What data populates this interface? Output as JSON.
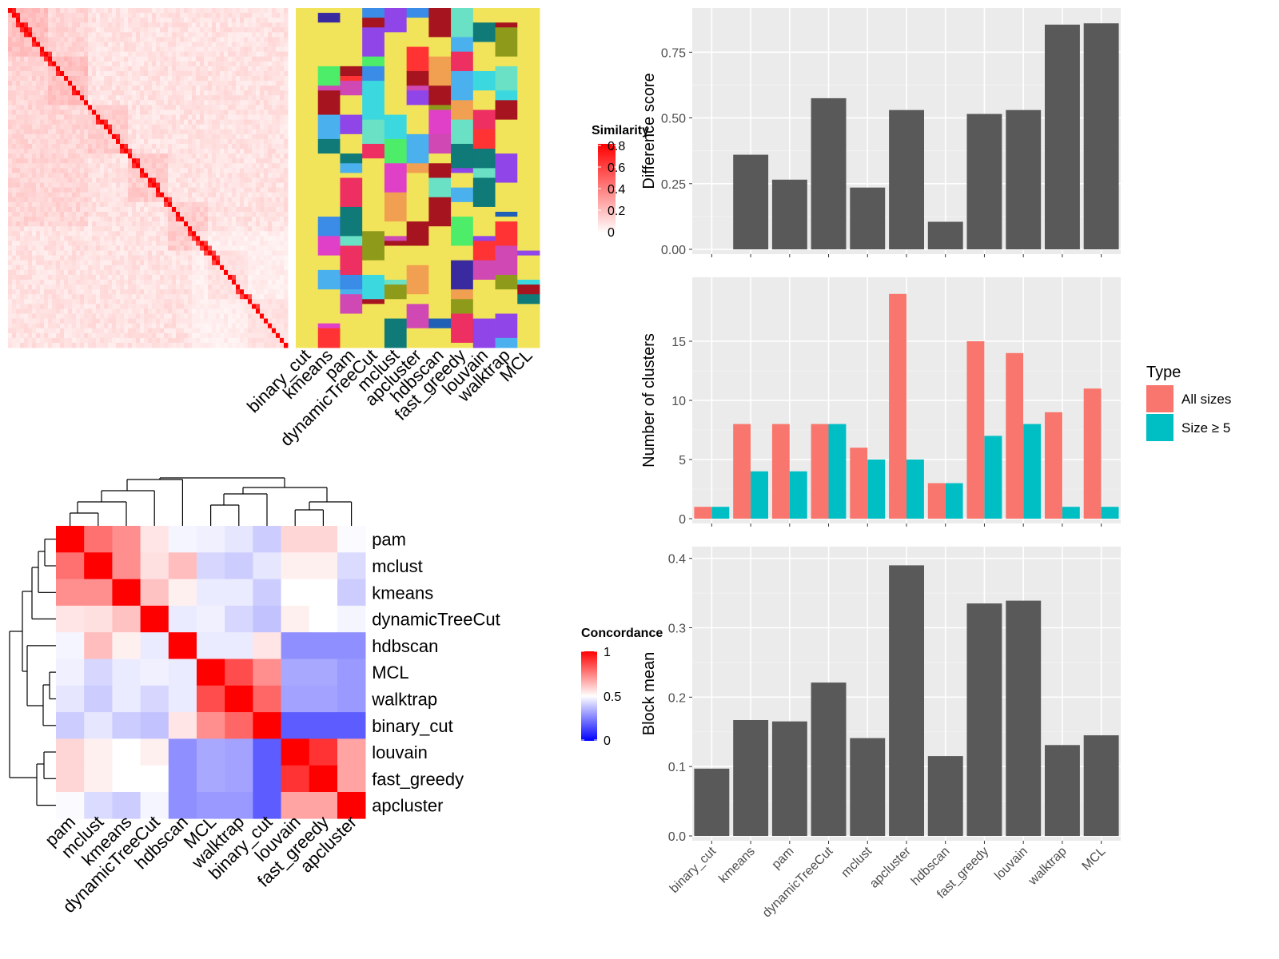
{
  "methods": [
    "binary_cut",
    "kmeans",
    "pam",
    "dynamicTreeCut",
    "mclust",
    "apcluster",
    "hdbscan",
    "fast_greedy",
    "louvain",
    "walktrap",
    "MCL"
  ],
  "similarity_legend": {
    "title": "Similarity",
    "ticks": [
      "0",
      "0.2",
      "0.4",
      "0.6",
      "0.8"
    ],
    "colors": [
      "#ffffff",
      "#ff0000"
    ]
  },
  "concordance_legend": {
    "title": "Concordance",
    "ticks": [
      "0",
      "0.5",
      "1"
    ],
    "colors": [
      "#0000ff",
      "#ffffff",
      "#ff0000"
    ]
  },
  "membership_palette": [
    "#f2e45a",
    "#6ae0c4",
    "#1f5fb5",
    "#3b8ce6",
    "#0f7a78",
    "#3a2aa0",
    "#e040c8",
    "#4ded6a",
    "#8f45e8",
    "#ff3333",
    "#f0a050",
    "#a6151f",
    "#8e9a1a",
    "#4ab0ee",
    "#cf48b4",
    "#3bd8e0",
    "#ee2f62"
  ],
  "chart_data": [
    {
      "type": "heatmap",
      "name": "Similarity heatmap with cluster memberships",
      "legend_title": "Similarity",
      "scale": [
        0,
        0.8
      ],
      "n_terms": 70,
      "columns": [
        "binary_cut",
        "kmeans",
        "pam",
        "dynamicTreeCut",
        "mclust",
        "apcluster",
        "hdbscan",
        "fast_greedy",
        "louvain",
        "walktrap",
        "MCL"
      ]
    },
    {
      "type": "heatmap",
      "name": "Concordance heatmap",
      "legend_title": "Concordance",
      "scale": [
        0,
        1
      ],
      "rows": [
        "pam",
        "mclust",
        "kmeans",
        "dynamicTreeCut",
        "hdbscan",
        "MCL",
        "walktrap",
        "binary_cut",
        "louvain",
        "fast_greedy",
        "apcluster"
      ],
      "cols": [
        "pam",
        "mclust",
        "kmeans",
        "dynamicTreeCut",
        "hdbscan",
        "MCL",
        "walktrap",
        "binary_cut",
        "louvain",
        "fast_greedy",
        "apcluster"
      ],
      "values": [
        [
          1.0,
          0.78,
          0.72,
          0.55,
          0.48,
          0.47,
          0.45,
          0.4,
          0.58,
          0.58,
          0.49
        ],
        [
          0.78,
          1.0,
          0.72,
          0.56,
          0.63,
          0.42,
          0.4,
          0.45,
          0.53,
          0.53,
          0.43
        ],
        [
          0.72,
          0.72,
          1.0,
          0.62,
          0.53,
          0.46,
          0.46,
          0.4,
          0.5,
          0.5,
          0.4
        ],
        [
          0.55,
          0.56,
          0.62,
          1.0,
          0.46,
          0.47,
          0.42,
          0.38,
          0.53,
          0.5,
          0.48
        ],
        [
          0.48,
          0.63,
          0.53,
          0.46,
          1.0,
          0.46,
          0.46,
          0.55,
          0.28,
          0.28,
          0.28
        ],
        [
          0.47,
          0.42,
          0.46,
          0.47,
          0.46,
          1.0,
          0.85,
          0.72,
          0.33,
          0.33,
          0.3
        ],
        [
          0.45,
          0.4,
          0.46,
          0.42,
          0.46,
          0.85,
          1.0,
          0.8,
          0.32,
          0.32,
          0.3
        ],
        [
          0.4,
          0.45,
          0.4,
          0.38,
          0.55,
          0.72,
          0.8,
          1.0,
          0.18,
          0.18,
          0.18
        ],
        [
          0.58,
          0.53,
          0.5,
          0.53,
          0.28,
          0.33,
          0.32,
          0.18,
          1.0,
          0.9,
          0.68
        ],
        [
          0.58,
          0.53,
          0.5,
          0.5,
          0.28,
          0.33,
          0.32,
          0.18,
          0.9,
          1.0,
          0.68
        ],
        [
          0.49,
          0.43,
          0.4,
          0.48,
          0.28,
          0.3,
          0.3,
          0.18,
          0.68,
          0.68,
          1.0
        ]
      ]
    },
    {
      "type": "bar",
      "name": "difference score",
      "categories": [
        "binary_cut",
        "kmeans",
        "pam",
        "dynamicTreeCut",
        "mclust",
        "apcluster",
        "hdbscan",
        "fast_greedy",
        "louvain",
        "walktrap",
        "MCL"
      ],
      "values": [
        0.0,
        0.36,
        0.265,
        0.575,
        0.235,
        0.53,
        0.105,
        0.515,
        0.53,
        0.855,
        0.86
      ],
      "ylabel": "Difference score",
      "ylim": [
        0,
        0.9
      ],
      "yticks": [
        "0.00",
        "0.25",
        "0.50",
        "0.75"
      ]
    },
    {
      "type": "bar",
      "name": "number of clusters",
      "categories": [
        "binary_cut",
        "kmeans",
        "pam",
        "dynamicTreeCut",
        "mclust",
        "apcluster",
        "hdbscan",
        "fast_greedy",
        "louvain",
        "walktrap",
        "MCL"
      ],
      "series": [
        {
          "name": "All sizes",
          "color": "#f8766d",
          "values": [
            1,
            8,
            8,
            8,
            6,
            19,
            3,
            15,
            14,
            9,
            11
          ]
        },
        {
          "name": "Size ≥ 5",
          "color": "#00bfc4",
          "values": [
            1,
            4,
            4,
            8,
            5,
            5,
            3,
            7,
            8,
            1,
            1
          ]
        }
      ],
      "ylabel": "Number of clusters",
      "ylim": [
        0,
        20
      ],
      "yticks": [
        "0",
        "5",
        "10",
        "15"
      ],
      "legend_title": "Type",
      "legend_position": "right"
    },
    {
      "type": "bar",
      "name": "block mean",
      "categories": [
        "binary_cut",
        "kmeans",
        "pam",
        "dynamicTreeCut",
        "mclust",
        "apcluster",
        "hdbscan",
        "fast_greedy",
        "louvain",
        "walktrap",
        "MCL"
      ],
      "values": [
        0.097,
        0.167,
        0.165,
        0.221,
        0.141,
        0.39,
        0.115,
        0.335,
        0.339,
        0.131,
        0.145
      ],
      "ylabel": "Block mean",
      "ylim": [
        0,
        0.41
      ],
      "yticks": [
        "0.0",
        "0.1",
        "0.2",
        "0.3",
        "0.4"
      ]
    }
  ]
}
